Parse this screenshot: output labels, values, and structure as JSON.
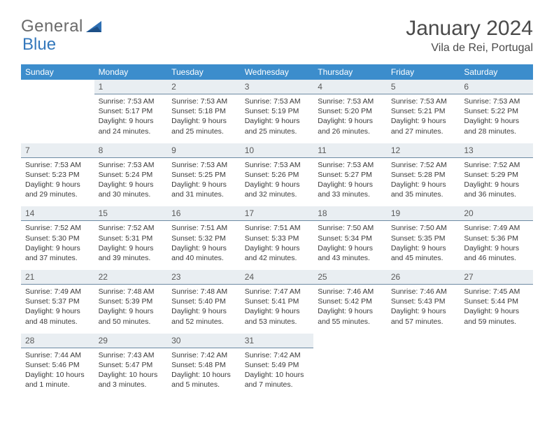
{
  "logo": {
    "text1": "General",
    "text2": "Blue"
  },
  "title": "January 2024",
  "subtitle": "Vila de Rei, Portugal",
  "colors": {
    "header_bg": "#3c8dcc",
    "header_fg": "#ffffff",
    "daynum_bg": "#e9eef2",
    "daynum_border": "#6d8aa3",
    "text": "#3a3a3a",
    "title": "#4a4a4a",
    "logo_gray": "#6a6a6a",
    "logo_blue": "#3478bc"
  },
  "weekdays": [
    "Sunday",
    "Monday",
    "Tuesday",
    "Wednesday",
    "Thursday",
    "Friday",
    "Saturday"
  ],
  "weeks": [
    [
      null,
      {
        "n": "1",
        "sunrise": "7:53 AM",
        "sunset": "5:17 PM",
        "daylight": "9 hours and 24 minutes."
      },
      {
        "n": "2",
        "sunrise": "7:53 AM",
        "sunset": "5:18 PM",
        "daylight": "9 hours and 25 minutes."
      },
      {
        "n": "3",
        "sunrise": "7:53 AM",
        "sunset": "5:19 PM",
        "daylight": "9 hours and 25 minutes."
      },
      {
        "n": "4",
        "sunrise": "7:53 AM",
        "sunset": "5:20 PM",
        "daylight": "9 hours and 26 minutes."
      },
      {
        "n": "5",
        "sunrise": "7:53 AM",
        "sunset": "5:21 PM",
        "daylight": "9 hours and 27 minutes."
      },
      {
        "n": "6",
        "sunrise": "7:53 AM",
        "sunset": "5:22 PM",
        "daylight": "9 hours and 28 minutes."
      }
    ],
    [
      {
        "n": "7",
        "sunrise": "7:53 AM",
        "sunset": "5:23 PM",
        "daylight": "9 hours and 29 minutes."
      },
      {
        "n": "8",
        "sunrise": "7:53 AM",
        "sunset": "5:24 PM",
        "daylight": "9 hours and 30 minutes."
      },
      {
        "n": "9",
        "sunrise": "7:53 AM",
        "sunset": "5:25 PM",
        "daylight": "9 hours and 31 minutes."
      },
      {
        "n": "10",
        "sunrise": "7:53 AM",
        "sunset": "5:26 PM",
        "daylight": "9 hours and 32 minutes."
      },
      {
        "n": "11",
        "sunrise": "7:53 AM",
        "sunset": "5:27 PM",
        "daylight": "9 hours and 33 minutes."
      },
      {
        "n": "12",
        "sunrise": "7:52 AM",
        "sunset": "5:28 PM",
        "daylight": "9 hours and 35 minutes."
      },
      {
        "n": "13",
        "sunrise": "7:52 AM",
        "sunset": "5:29 PM",
        "daylight": "9 hours and 36 minutes."
      }
    ],
    [
      {
        "n": "14",
        "sunrise": "7:52 AM",
        "sunset": "5:30 PM",
        "daylight": "9 hours and 37 minutes."
      },
      {
        "n": "15",
        "sunrise": "7:52 AM",
        "sunset": "5:31 PM",
        "daylight": "9 hours and 39 minutes."
      },
      {
        "n": "16",
        "sunrise": "7:51 AM",
        "sunset": "5:32 PM",
        "daylight": "9 hours and 40 minutes."
      },
      {
        "n": "17",
        "sunrise": "7:51 AM",
        "sunset": "5:33 PM",
        "daylight": "9 hours and 42 minutes."
      },
      {
        "n": "18",
        "sunrise": "7:50 AM",
        "sunset": "5:34 PM",
        "daylight": "9 hours and 43 minutes."
      },
      {
        "n": "19",
        "sunrise": "7:50 AM",
        "sunset": "5:35 PM",
        "daylight": "9 hours and 45 minutes."
      },
      {
        "n": "20",
        "sunrise": "7:49 AM",
        "sunset": "5:36 PM",
        "daylight": "9 hours and 46 minutes."
      }
    ],
    [
      {
        "n": "21",
        "sunrise": "7:49 AM",
        "sunset": "5:37 PM",
        "daylight": "9 hours and 48 minutes."
      },
      {
        "n": "22",
        "sunrise": "7:48 AM",
        "sunset": "5:39 PM",
        "daylight": "9 hours and 50 minutes."
      },
      {
        "n": "23",
        "sunrise": "7:48 AM",
        "sunset": "5:40 PM",
        "daylight": "9 hours and 52 minutes."
      },
      {
        "n": "24",
        "sunrise": "7:47 AM",
        "sunset": "5:41 PM",
        "daylight": "9 hours and 53 minutes."
      },
      {
        "n": "25",
        "sunrise": "7:46 AM",
        "sunset": "5:42 PM",
        "daylight": "9 hours and 55 minutes."
      },
      {
        "n": "26",
        "sunrise": "7:46 AM",
        "sunset": "5:43 PM",
        "daylight": "9 hours and 57 minutes."
      },
      {
        "n": "27",
        "sunrise": "7:45 AM",
        "sunset": "5:44 PM",
        "daylight": "9 hours and 59 minutes."
      }
    ],
    [
      {
        "n": "28",
        "sunrise": "7:44 AM",
        "sunset": "5:46 PM",
        "daylight": "10 hours and 1 minute."
      },
      {
        "n": "29",
        "sunrise": "7:43 AM",
        "sunset": "5:47 PM",
        "daylight": "10 hours and 3 minutes."
      },
      {
        "n": "30",
        "sunrise": "7:42 AM",
        "sunset": "5:48 PM",
        "daylight": "10 hours and 5 minutes."
      },
      {
        "n": "31",
        "sunrise": "7:42 AM",
        "sunset": "5:49 PM",
        "daylight": "10 hours and 7 minutes."
      },
      null,
      null,
      null
    ]
  ],
  "labels": {
    "sunrise": "Sunrise:",
    "sunset": "Sunset:",
    "daylight": "Daylight:"
  }
}
